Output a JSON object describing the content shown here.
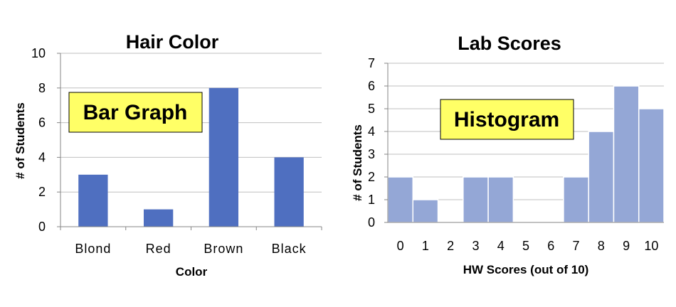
{
  "chart_data": [
    {
      "type": "bar",
      "title": "Hair Color",
      "xlabel": "Color",
      "ylabel": "# of Students",
      "categories": [
        "Blond",
        "Red",
        "Brown",
        "Black"
      ],
      "values": [
        3,
        1,
        8,
        4
      ],
      "ylim": [
        0,
        10
      ],
      "yticks": [
        0,
        2,
        4,
        6,
        8,
        10
      ],
      "grid": true,
      "bar_color": "#4F6FC0",
      "callout": "Bar Graph"
    },
    {
      "type": "bar",
      "title": "Lab Scores",
      "xlabel": "HW Scores (out of 10)",
      "ylabel": "# of Students",
      "categories": [
        "0",
        "1",
        "2",
        "3",
        "4",
        "5",
        "6",
        "7",
        "8",
        "9",
        "10"
      ],
      "values": [
        2,
        1,
        0,
        2,
        2,
        0,
        0,
        2,
        4,
        6,
        5
      ],
      "ylim": [
        0,
        7
      ],
      "yticks": [
        0,
        1,
        2,
        3,
        4,
        5,
        6,
        7
      ],
      "grid": true,
      "bar_color": "#94A7D6",
      "callout": "Histogram"
    }
  ],
  "colors": {
    "callout_fill": "#FFFF66",
    "gridline": "#BFBFBF",
    "axis": "#868686"
  }
}
